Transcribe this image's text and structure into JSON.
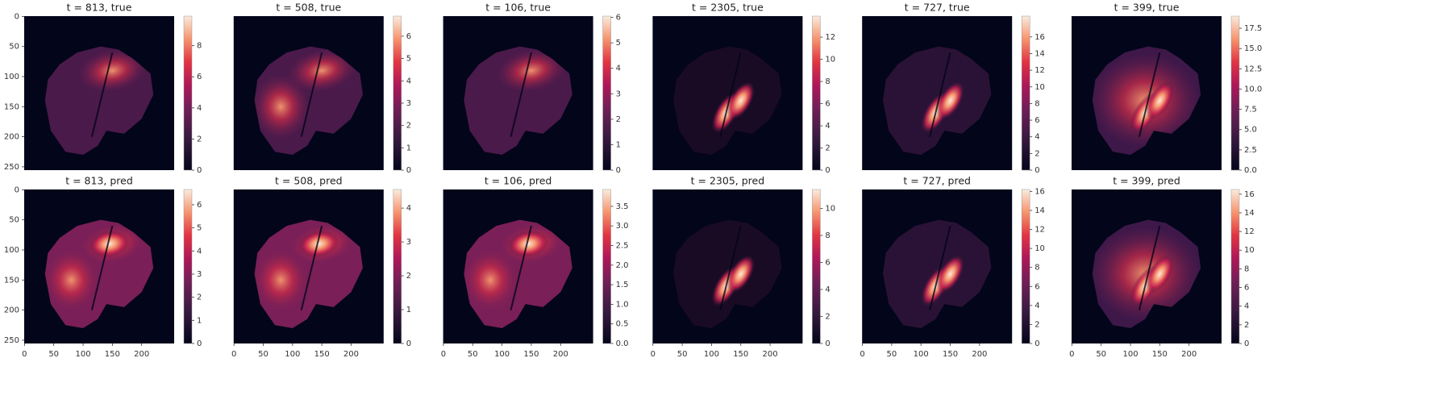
{
  "chart_data": [
    {
      "type": "heatmap",
      "title": "t = 813, true",
      "xlim": [
        -0.5,
        255.5
      ],
      "ylim": [
        255.5,
        -0.5
      ],
      "yticks": [
        0,
        50,
        100,
        150,
        200,
        250
      ],
      "clim": [
        0,
        9.9
      ],
      "cticks": [
        0,
        2,
        4,
        6,
        8
      ]
    },
    {
      "type": "heatmap",
      "title": "t = 508, true",
      "xlim": [
        -0.5,
        255.5
      ],
      "ylim": [
        255.5,
        -0.5
      ],
      "clim": [
        0,
        6.9
      ],
      "cticks": [
        0,
        1,
        2,
        3,
        4,
        5,
        6
      ]
    },
    {
      "type": "heatmap",
      "title": "t = 106, true",
      "xlim": [
        -0.5,
        255.5
      ],
      "ylim": [
        255.5,
        -0.5
      ],
      "clim": [
        0,
        6.05
      ],
      "cticks": [
        0,
        1,
        2,
        3,
        4,
        5,
        6
      ]
    },
    {
      "type": "heatmap",
      "title": "t = 2305, true",
      "xlim": [
        -0.5,
        255.5
      ],
      "ylim": [
        255.5,
        -0.5
      ],
      "clim": [
        0,
        13.9
      ],
      "cticks": [
        0,
        2,
        4,
        6,
        8,
        10,
        12
      ]
    },
    {
      "type": "heatmap",
      "title": "t = 727, true",
      "xlim": [
        -0.5,
        255.5
      ],
      "ylim": [
        255.5,
        -0.5
      ],
      "clim": [
        0,
        18.5
      ],
      "cticks": [
        0,
        2,
        4,
        6,
        8,
        10,
        12,
        14,
        16
      ]
    },
    {
      "type": "heatmap",
      "title": "t = 399, true",
      "xlim": [
        -0.5,
        255.5
      ],
      "ylim": [
        255.5,
        -0.5
      ],
      "clim": [
        0,
        19
      ],
      "cticks": [
        {
          "value": 0,
          "label": "0.0"
        },
        2.5,
        {
          "value": 5,
          "label": "5.0"
        },
        7.5,
        {
          "value": 10,
          "label": "10.0"
        },
        12.5,
        {
          "value": 15,
          "label": "15.0"
        },
        17.5
      ]
    },
    {
      "type": "heatmap",
      "title": "t = 813, pred",
      "xlim": [
        -0.5,
        255.5
      ],
      "ylim": [
        255.5,
        -0.5
      ],
      "xticks": [
        0,
        50,
        100,
        150,
        200
      ],
      "yticks": [
        0,
        50,
        100,
        150,
        200,
        250
      ],
      "clim": [
        0,
        6.66
      ],
      "cticks": [
        0,
        1,
        2,
        3,
        4,
        5,
        6
      ]
    },
    {
      "type": "heatmap",
      "title": "t = 508, pred",
      "xlim": [
        -0.5,
        255.5
      ],
      "ylim": [
        255.5,
        -0.5
      ],
      "xticks": [
        0,
        50,
        100,
        150,
        200
      ],
      "clim": [
        0,
        4.55
      ],
      "cticks": [
        0,
        1,
        2,
        3,
        4
      ]
    },
    {
      "type": "heatmap",
      "title": "t = 106, pred",
      "xlim": [
        -0.5,
        255.5
      ],
      "ylim": [
        255.5,
        -0.5
      ],
      "xticks": [
        0,
        50,
        100,
        150,
        200
      ],
      "clim": [
        0,
        3.93
      ],
      "cticks": [
        {
          "value": 0,
          "label": "0.0"
        },
        0.5,
        {
          "value": 1,
          "label": "1.0"
        },
        1.5,
        {
          "value": 2,
          "label": "2.0"
        },
        2.5,
        {
          "value": 3,
          "label": "3.0"
        },
        3.5
      ]
    },
    {
      "type": "heatmap",
      "title": "t = 2305, pred",
      "xlim": [
        -0.5,
        255.5
      ],
      "ylim": [
        255.5,
        -0.5
      ],
      "xticks": [
        0,
        50,
        100,
        150,
        200
      ],
      "clim": [
        0,
        11.4
      ],
      "cticks": [
        0,
        2,
        4,
        6,
        8,
        10
      ]
    },
    {
      "type": "heatmap",
      "title": "t = 727, pred",
      "xlim": [
        -0.5,
        255.5
      ],
      "ylim": [
        255.5,
        -0.5
      ],
      "xticks": [
        0,
        50,
        100,
        150,
        200
      ],
      "clim": [
        0,
        16.2
      ],
      "cticks": [
        0,
        2,
        4,
        6,
        8,
        10,
        12,
        14,
        16
      ]
    },
    {
      "type": "heatmap",
      "title": "t = 399, pred",
      "xlim": [
        -0.5,
        255.5
      ],
      "ylim": [
        255.5,
        -0.5
      ],
      "xticks": [
        0,
        50,
        100,
        150,
        200
      ],
      "clim": [
        0,
        16.5
      ],
      "cticks": [
        0,
        2,
        4,
        6,
        8,
        10,
        12,
        14,
        16
      ]
    }
  ]
}
